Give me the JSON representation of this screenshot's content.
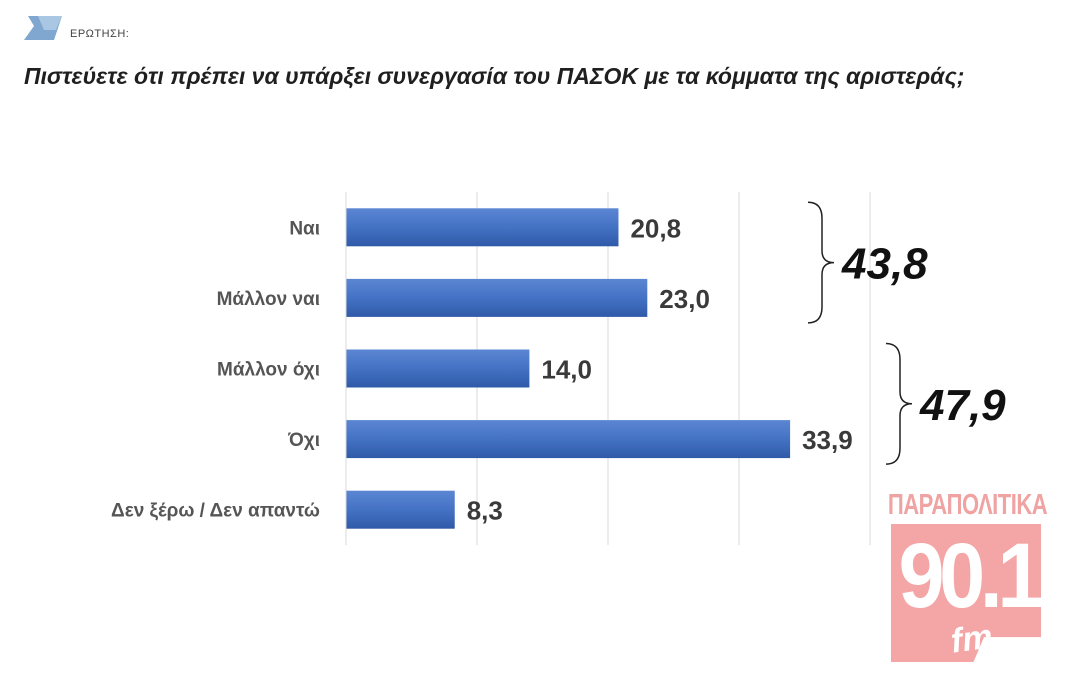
{
  "header": {
    "label": "ΕΡΩΤΗΣΗ:",
    "question": "Πιστεύετε ότι πρέπει να υπάρξει συνεργασία του ΠΑΣΟΚ με τα κόμματα της αριστεράς;"
  },
  "chart_data": {
    "type": "bar",
    "orientation": "horizontal",
    "categories": [
      "Ναι",
      "Μάλλον ναι",
      "Μάλλον όχι",
      "Όχι",
      "Δεν ξέρω / Δεν απαντώ"
    ],
    "values": [
      20.8,
      23.0,
      14.0,
      33.9,
      8.3
    ],
    "value_labels": [
      "20,8",
      "23,0",
      "14,0",
      "33,9",
      "8,3"
    ],
    "groups": [
      {
        "label": "43,8",
        "value": 43.8,
        "categories": [
          "Ναι",
          "Μάλλον ναι"
        ]
      },
      {
        "label": "47,9",
        "value": 47.9,
        "categories": [
          "Μάλλον όχι",
          "Όχι"
        ]
      }
    ],
    "xlim": [
      0,
      40
    ],
    "grid": true,
    "bar_color": "#4472c4"
  },
  "logo": {
    "top_text": "ΠΑΡΑΠΟΛΙΤΙΚΑ",
    "number": "90.1",
    "suffix": "fm",
    "color": "#f4a5a5"
  }
}
